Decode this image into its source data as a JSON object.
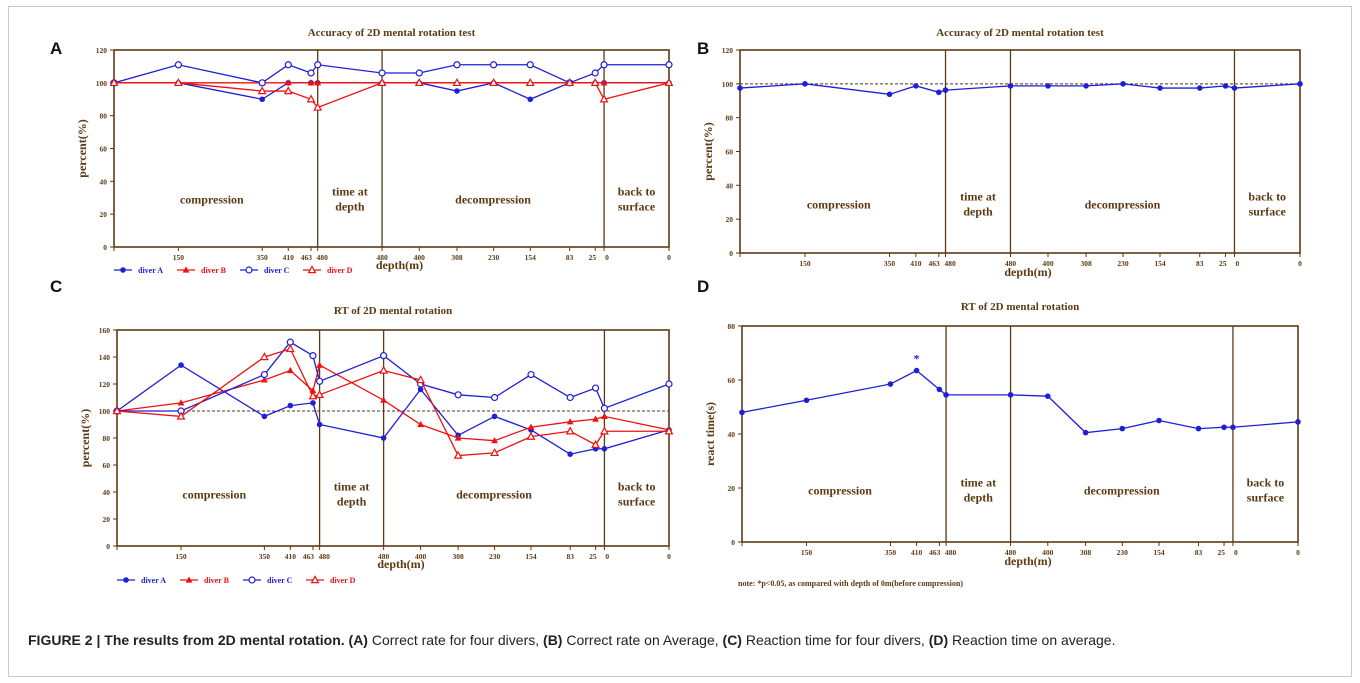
{
  "figure": {
    "caption_label": "FIGURE 2 | The results from 2D mental rotation.",
    "caption_parts": [
      {
        "tag": "(A)",
        "text": " Correct rate for four divers, "
      },
      {
        "tag": "(B)",
        "text": " Correct rate on Average, "
      },
      {
        "tag": "(C)",
        "text": " Reaction time for four divers, "
      },
      {
        "tag": "(D)",
        "text": " Reaction time on average."
      }
    ]
  },
  "colors": {
    "blue": "#1f1fd6",
    "red": "#ee1111",
    "frame": "#5c3a14",
    "label": "#5c3a14",
    "dash": "#4a3a1a"
  },
  "chart_data": [
    {
      "panel": "A",
      "type": "line",
      "title": "Accuracy of 2D mental rotation test",
      "xlabel": "depth(m)",
      "ylabel": "percent(%)",
      "ylim": [
        0,
        120
      ],
      "yticks": [
        0,
        20,
        40,
        60,
        80,
        100,
        120
      ],
      "x_ticks": [
        "0",
        "150",
        "350",
        "410",
        "463",
        "480",
        "480",
        "400",
        "308",
        "230",
        "154",
        "83",
        "25",
        "0",
        "0"
      ],
      "phase_labels": [
        "compression",
        "time at\ndepth",
        "decompression",
        "back to\nsurface"
      ],
      "legend": [
        "diver A",
        "diver B",
        "diver C",
        "diver D"
      ],
      "series": [
        {
          "name": "diver A",
          "color": "blue",
          "marker": "dot",
          "values": [
            100,
            100,
            90,
            100,
            100,
            100,
            100,
            100,
            95,
            100,
            90,
            100,
            100,
            100,
            100
          ]
        },
        {
          "name": "diver B",
          "color": "red",
          "marker": "tri",
          "values": [
            100,
            100,
            100,
            100,
            100,
            100,
            100,
            100,
            100,
            100,
            100,
            100,
            100,
            100,
            100
          ]
        },
        {
          "name": "diver C",
          "color": "blue",
          "marker": "circle",
          "values": [
            100,
            111,
            100,
            111,
            106,
            111,
            106,
            106,
            111,
            111,
            111,
            100,
            106,
            111,
            111
          ]
        },
        {
          "name": "diver D",
          "color": "red",
          "marker": "opentri",
          "values": [
            100,
            100,
            95,
            95,
            90,
            85,
            100,
            100,
            100,
            100,
            100,
            100,
            100,
            90,
            100
          ]
        }
      ]
    },
    {
      "panel": "B",
      "type": "line",
      "title": "Accuracy of 2D mental rotation test",
      "xlabel": "depth(m)",
      "ylabel": "percent(%)",
      "ylim": [
        0,
        120
      ],
      "yticks": [
        0,
        20,
        40,
        60,
        80,
        100,
        120
      ],
      "reference_line": 100,
      "x_ticks": [
        "0",
        "150",
        "350",
        "410",
        "463",
        "480",
        "480",
        "400",
        "308",
        "230",
        "154",
        "83",
        "25",
        "0",
        "0"
      ],
      "phase_labels": [
        "compression",
        "time at\ndepth",
        "decompression",
        "back to\nsurface"
      ],
      "series": [
        {
          "name": "",
          "color": "blue",
          "marker": "dot",
          "values": [
            97.5,
            100,
            93.8,
            98.8,
            95,
            96.3,
            98.8,
            98.8,
            98.8,
            100,
            97.5,
            97.5,
            98.8,
            97.5,
            100
          ]
        }
      ]
    },
    {
      "panel": "C",
      "type": "line",
      "title": "RT of 2D mental rotation",
      "xlabel": "depth(m)",
      "ylabel": "percent(%)",
      "ylim": [
        0,
        160
      ],
      "yticks": [
        0,
        20,
        40,
        60,
        80,
        100,
        120,
        140,
        160
      ],
      "reference_line": 100,
      "x_ticks": [
        "0",
        "150",
        "350",
        "410",
        "463",
        "480",
        "480",
        "400",
        "308",
        "230",
        "154",
        "83",
        "25",
        "0",
        "0"
      ],
      "phase_labels": [
        "compression",
        "time at\ndepth",
        "decompression",
        "back to\nsurface"
      ],
      "legend": [
        "diver A",
        "diver B",
        "diver C",
        "diver D"
      ],
      "series": [
        {
          "name": "diver A",
          "color": "blue",
          "marker": "dot",
          "values": [
            100,
            134,
            96,
            104,
            106,
            90,
            80,
            116,
            82,
            96,
            86,
            68,
            72,
            72,
            86
          ]
        },
        {
          "name": "diver B",
          "color": "red",
          "marker": "tri",
          "values": [
            100,
            106,
            123,
            130,
            115,
            134,
            108,
            90,
            80,
            78,
            88,
            92,
            94,
            96,
            86
          ]
        },
        {
          "name": "diver C",
          "color": "blue",
          "marker": "circle",
          "values": [
            100,
            100,
            127,
            151,
            141,
            122,
            141,
            120,
            112,
            110,
            127,
            110,
            117,
            102,
            120
          ]
        },
        {
          "name": "diver D",
          "color": "red",
          "marker": "opentri",
          "values": [
            100,
            96,
            140,
            146,
            111,
            112,
            130,
            123,
            67,
            69,
            81,
            85,
            75,
            85,
            85
          ]
        }
      ]
    },
    {
      "panel": "D",
      "type": "line",
      "title": "RT of 2D mental rotation",
      "xlabel": "depth(m)",
      "ylabel": "react time(s)",
      "ylim": [
        0,
        80
      ],
      "yticks": [
        0,
        20,
        40,
        60,
        80
      ],
      "x_ticks": [
        "0",
        "150",
        "350",
        "410",
        "463",
        "480",
        "480",
        "400",
        "308",
        "230",
        "154",
        "83",
        "25",
        "0",
        "0"
      ],
      "phase_labels": [
        "compression",
        "time at\ndepth",
        "decompression",
        "back to\nsurface"
      ],
      "annotation": {
        "text": "*",
        "index": 3
      },
      "note": "note: *p<0.05, as compared with depth of 0m(before compression)",
      "series": [
        {
          "name": "",
          "color": "blue",
          "marker": "dot",
          "values": [
            48,
            52.5,
            58.5,
            63.5,
            56.5,
            54.5,
            54.5,
            54,
            40.5,
            42,
            45,
            42,
            42.5,
            42.5,
            44.5
          ]
        }
      ]
    }
  ]
}
